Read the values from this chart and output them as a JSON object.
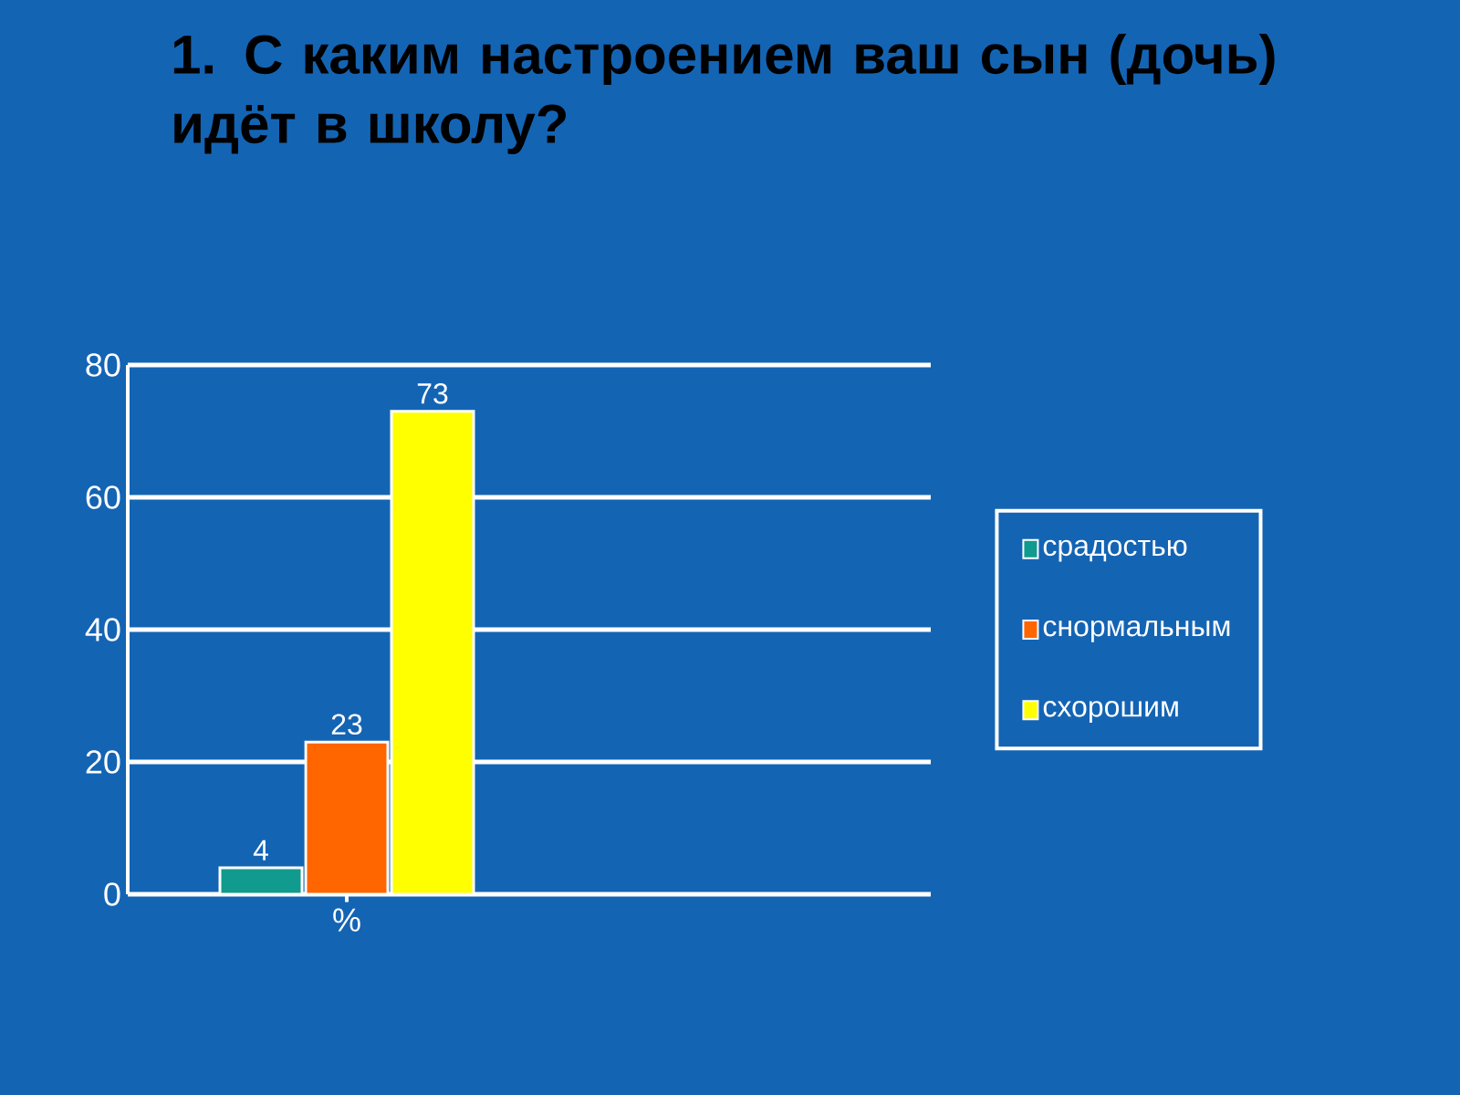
{
  "chart_data": {
    "type": "bar",
    "title": "1. С каким настроением ваш сын (дочь) идёт в школу?",
    "categories": [
      "%"
    ],
    "series": [
      {
        "name": "срадостью",
        "color": "#119a8e",
        "values": [
          4
        ]
      },
      {
        "name": "снормальным",
        "color": "#ff6600",
        "values": [
          23
        ]
      },
      {
        "name": "схорошим",
        "color": "#ffff00",
        "values": [
          73
        ]
      }
    ],
    "ylim": [
      0,
      80
    ],
    "yticks": [
      0,
      20,
      40,
      60,
      80
    ],
    "grid": "y",
    "legend": "right",
    "data_labels": true
  }
}
